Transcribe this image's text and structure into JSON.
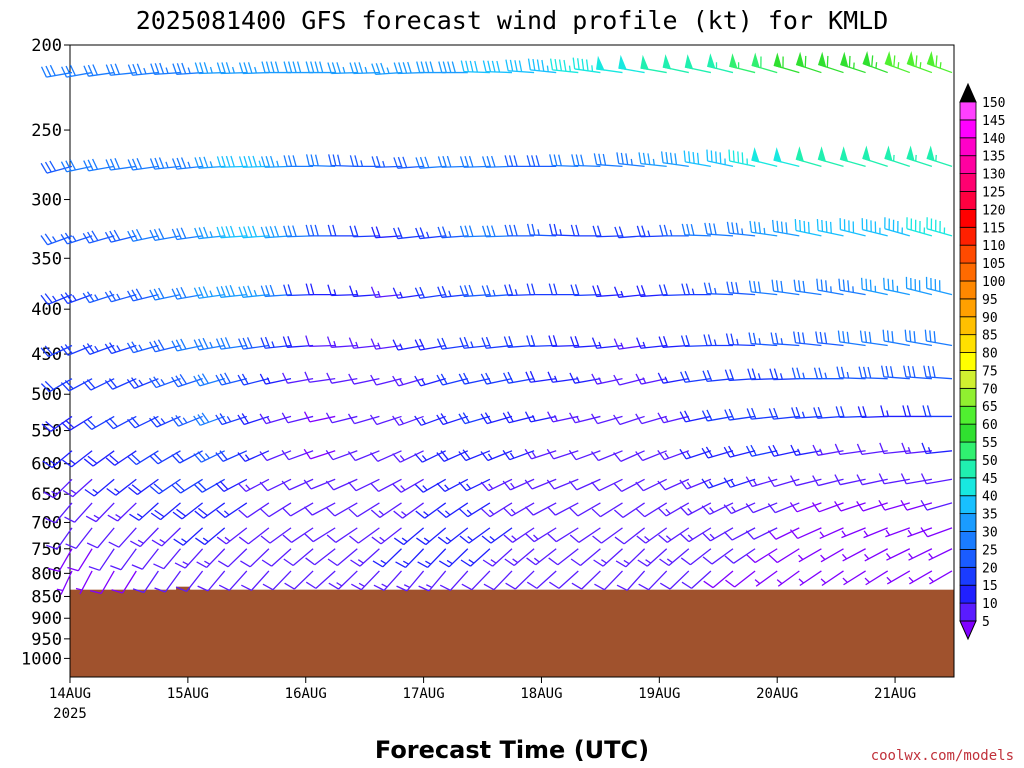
{
  "title": "2025081400 GFS forecast wind profile (kt) for KMLD",
  "credit": "coolwx.com/models",
  "chart_data": {
    "type": "wind-barb-profile",
    "title": "2025081400 GFS forecast wind profile (kt) for KMLD",
    "xlabel": "Forecast Time (UTC)",
    "ylabel": "",
    "x_ticks": [
      "14AUG",
      "15AUG",
      "16AUG",
      "17AUG",
      "18AUG",
      "19AUG",
      "20AUG",
      "21AUG"
    ],
    "x_year": "2025",
    "x_range_days": [
      0,
      7.5
    ],
    "y_ticks": [
      200,
      250,
      300,
      350,
      400,
      450,
      500,
      550,
      600,
      650,
      700,
      750,
      800,
      850,
      900,
      950,
      1000
    ],
    "ylim": [
      200,
      1050
    ],
    "y_scale": "log-pressure",
    "colorbar_levels": [
      5,
      10,
      15,
      20,
      25,
      30,
      35,
      40,
      45,
      50,
      55,
      60,
      65,
      70,
      75,
      80,
      85,
      90,
      95,
      100,
      105,
      110,
      115,
      120,
      125,
      130,
      135,
      140,
      145,
      150
    ],
    "colorbar_colors": [
      "#8000ff",
      "#5a1cff",
      "#2020ff",
      "#1a3cff",
      "#1a5cff",
      "#1a7cff",
      "#1a9cff",
      "#18c0ff",
      "#18e8e0",
      "#20f0b0",
      "#30f070",
      "#30e030",
      "#50f030",
      "#90f030",
      "#d0f030",
      "#ffff00",
      "#ffe000",
      "#ffc000",
      "#ffa000",
      "#ff8800",
      "#ff6a00",
      "#ff4a00",
      "#ff2000",
      "#ff0000",
      "#ff0040",
      "#ff0070",
      "#ff00a0",
      "#ff00c8",
      "#ff00ff",
      "#ff40ff"
    ],
    "terrain_pressure": 835,
    "terrain_color": "#a0522d",
    "levels": [
      {
        "p": 215,
        "speeds": [
          30,
          30,
          32,
          32,
          34,
          34,
          34,
          36,
          36,
          36,
          38,
          38,
          38,
          36,
          36,
          36,
          38,
          38,
          38,
          40,
          40,
          40,
          44,
          46,
          46,
          48,
          48,
          50,
          50,
          52,
          54,
          56,
          58,
          60,
          62,
          62,
          64,
          64,
          66,
          66,
          66
        ],
        "dirs": [
          260,
          260,
          262,
          264,
          264,
          266,
          266,
          268,
          268,
          268,
          270,
          270,
          270,
          268,
          268,
          266,
          268,
          270,
          270,
          272,
          272,
          274,
          276,
          276,
          278,
          278,
          280,
          280,
          282,
          282,
          284,
          284,
          286,
          286,
          288,
          288,
          288,
          290,
          290,
          290,
          290
        ]
      },
      {
        "p": 275,
        "speeds": [
          28,
          30,
          30,
          32,
          32,
          34,
          34,
          36,
          42,
          44,
          36,
          30,
          30,
          28,
          26,
          26,
          28,
          30,
          32,
          32,
          30,
          28,
          28,
          30,
          30,
          32,
          34,
          36,
          38,
          42,
          44,
          46,
          48,
          48,
          50,
          50,
          52,
          52,
          54,
          54,
          54
        ],
        "dirs": [
          255,
          258,
          260,
          262,
          262,
          264,
          264,
          266,
          268,
          268,
          268,
          270,
          272,
          272,
          270,
          268,
          266,
          266,
          268,
          268,
          268,
          270,
          270,
          272,
          272,
          274,
          276,
          276,
          278,
          280,
          282,
          282,
          284,
          284,
          286,
          286,
          286,
          288,
          288,
          288,
          288
        ]
      },
      {
        "p": 330,
        "speeds": [
          26,
          26,
          28,
          28,
          30,
          30,
          32,
          36,
          40,
          42,
          38,
          30,
          28,
          22,
          20,
          18,
          20,
          24,
          26,
          30,
          30,
          28,
          26,
          24,
          22,
          22,
          20,
          24,
          26,
          30,
          32,
          34,
          36,
          38,
          40,
          42,
          42,
          44,
          44,
          46,
          46
        ],
        "dirs": [
          250,
          252,
          254,
          256,
          258,
          260,
          262,
          264,
          266,
          266,
          266,
          268,
          270,
          270,
          268,
          266,
          264,
          264,
          266,
          268,
          268,
          270,
          272,
          272,
          270,
          268,
          266,
          268,
          270,
          272,
          274,
          276,
          278,
          280,
          282,
          282,
          284,
          284,
          286,
          286,
          286
        ]
      },
      {
        "p": 385,
        "speeds": [
          24,
          24,
          26,
          26,
          28,
          30,
          32,
          36,
          38,
          36,
          32,
          22,
          18,
          16,
          16,
          14,
          16,
          20,
          24,
          28,
          26,
          24,
          22,
          22,
          20,
          18,
          16,
          18,
          20,
          24,
          26,
          28,
          30,
          32,
          32,
          34,
          34,
          36,
          36,
          38,
          38
        ],
        "dirs": [
          248,
          250,
          252,
          254,
          256,
          258,
          260,
          262,
          264,
          264,
          266,
          268,
          270,
          268,
          266,
          264,
          262,
          262,
          264,
          266,
          266,
          268,
          270,
          270,
          268,
          266,
          264,
          266,
          268,
          270,
          272,
          274,
          276,
          278,
          278,
          280,
          280,
          282,
          282,
          284,
          284
        ]
      },
      {
        "p": 440,
        "speeds": [
          22,
          22,
          24,
          24,
          26,
          28,
          30,
          34,
          32,
          28,
          24,
          18,
          12,
          14,
          14,
          14,
          16,
          18,
          22,
          24,
          22,
          22,
          20,
          18,
          18,
          16,
          14,
          16,
          18,
          22,
          24,
          24,
          26,
          26,
          28,
          28,
          30,
          30,
          30,
          32,
          32
        ],
        "dirs": [
          245,
          248,
          250,
          252,
          254,
          256,
          258,
          260,
          262,
          262,
          264,
          266,
          268,
          266,
          264,
          262,
          260,
          260,
          262,
          264,
          264,
          266,
          268,
          268,
          266,
          264,
          262,
          264,
          266,
          268,
          270,
          272,
          274,
          274,
          276,
          276,
          278,
          278,
          280,
          280,
          280
        ]
      },
      {
        "p": 480,
        "speeds": [
          20,
          20,
          22,
          22,
          24,
          26,
          28,
          32,
          28,
          22,
          16,
          12,
          10,
          10,
          12,
          12,
          14,
          16,
          20,
          22,
          20,
          20,
          18,
          16,
          16,
          14,
          12,
          14,
          16,
          20,
          22,
          22,
          24,
          24,
          26,
          26,
          26,
          28,
          28,
          28,
          28
        ],
        "dirs": [
          240,
          242,
          244,
          246,
          248,
          250,
          252,
          254,
          256,
          256,
          258,
          260,
          262,
          260,
          258,
          256,
          254,
          254,
          256,
          258,
          258,
          260,
          262,
          262,
          260,
          258,
          256,
          258,
          260,
          262,
          264,
          266,
          268,
          268,
          270,
          270,
          272,
          272,
          274,
          274,
          274
        ]
      },
      {
        "p": 530,
        "speeds": [
          18,
          18,
          20,
          20,
          22,
          24,
          26,
          30,
          24,
          18,
          14,
          10,
          8,
          10,
          10,
          12,
          14,
          16,
          18,
          20,
          18,
          18,
          16,
          14,
          14,
          12,
          10,
          12,
          14,
          18,
          20,
          20,
          22,
          22,
          24,
          22,
          20,
          18,
          16,
          18,
          20
        ],
        "dirs": [
          235,
          238,
          240,
          242,
          244,
          246,
          248,
          250,
          252,
          252,
          254,
          256,
          258,
          256,
          254,
          252,
          250,
          250,
          252,
          254,
          254,
          256,
          258,
          258,
          256,
          254,
          252,
          254,
          256,
          258,
          260,
          262,
          264,
          264,
          266,
          266,
          268,
          268,
          270,
          270,
          270
        ]
      },
      {
        "p": 580,
        "speeds": [
          16,
          16,
          18,
          18,
          20,
          22,
          22,
          26,
          20,
          16,
          12,
          10,
          8,
          10,
          10,
          12,
          14,
          16,
          18,
          18,
          16,
          16,
          14,
          12,
          12,
          10,
          10,
          12,
          14,
          16,
          18,
          18,
          20,
          18,
          16,
          14,
          12,
          12,
          12,
          14,
          16
        ],
        "dirs": [
          230,
          232,
          234,
          236,
          238,
          240,
          242,
          244,
          246,
          246,
          248,
          250,
          252,
          250,
          248,
          246,
          244,
          244,
          246,
          248,
          248,
          250,
          252,
          252,
          250,
          248,
          246,
          248,
          250,
          252,
          254,
          256,
          258,
          258,
          260,
          260,
          262,
          262,
          264,
          264,
          264
        ]
      },
      {
        "p": 625,
        "speeds": [
          14,
          14,
          16,
          16,
          18,
          20,
          20,
          22,
          18,
          14,
          12,
          10,
          10,
          10,
          10,
          12,
          14,
          16,
          16,
          16,
          14,
          14,
          12,
          12,
          12,
          12,
          10,
          10,
          12,
          14,
          16,
          16,
          14,
          12,
          10,
          10,
          10,
          10,
          10,
          10,
          12
        ],
        "dirs": [
          225,
          228,
          230,
          232,
          234,
          236,
          238,
          240,
          242,
          242,
          244,
          246,
          248,
          246,
          244,
          242,
          240,
          240,
          242,
          244,
          244,
          246,
          248,
          248,
          246,
          244,
          242,
          244,
          246,
          248,
          250,
          252,
          254,
          254,
          256,
          256,
          258,
          258,
          260,
          260,
          260
        ]
      },
      {
        "p": 665,
        "speeds": [
          12,
          12,
          14,
          14,
          16,
          18,
          18,
          18,
          16,
          12,
          10,
          10,
          10,
          12,
          12,
          14,
          14,
          16,
          16,
          16,
          14,
          14,
          12,
          12,
          12,
          12,
          12,
          12,
          14,
          14,
          14,
          14,
          12,
          10,
          8,
          8,
          8,
          8,
          8,
          8,
          10
        ],
        "dirs": [
          220,
          222,
          224,
          226,
          228,
          230,
          232,
          234,
          236,
          236,
          238,
          240,
          242,
          240,
          238,
          236,
          234,
          234,
          236,
          238,
          238,
          240,
          242,
          242,
          240,
          238,
          236,
          238,
          240,
          242,
          244,
          246,
          248,
          248,
          250,
          250,
          252,
          252,
          254,
          254,
          254
        ]
      },
      {
        "p": 710,
        "speeds": [
          10,
          10,
          12,
          12,
          14,
          14,
          16,
          16,
          14,
          12,
          10,
          10,
          10,
          12,
          12,
          14,
          16,
          16,
          16,
          16,
          16,
          14,
          14,
          12,
          12,
          12,
          12,
          14,
          14,
          14,
          14,
          12,
          10,
          8,
          8,
          6,
          6,
          6,
          6,
          6,
          8
        ],
        "dirs": [
          215,
          218,
          220,
          222,
          224,
          226,
          228,
          230,
          232,
          232,
          234,
          236,
          238,
          236,
          234,
          232,
          230,
          230,
          232,
          234,
          234,
          236,
          238,
          238,
          236,
          234,
          232,
          234,
          236,
          238,
          240,
          242,
          244,
          244,
          246,
          246,
          248,
          248,
          250,
          250,
          250
        ]
      },
      {
        "p": 750,
        "speeds": [
          8,
          8,
          10,
          10,
          12,
          12,
          14,
          14,
          12,
          10,
          10,
          10,
          12,
          12,
          14,
          16,
          16,
          16,
          16,
          16,
          14,
          14,
          14,
          12,
          12,
          14,
          14,
          14,
          14,
          12,
          12,
          10,
          8,
          8,
          6,
          6,
          6,
          6,
          6,
          6,
          6
        ],
        "dirs": [
          210,
          212,
          214,
          216,
          218,
          220,
          222,
          224,
          226,
          226,
          228,
          230,
          232,
          230,
          228,
          226,
          224,
          224,
          226,
          228,
          228,
          230,
          232,
          232,
          230,
          228,
          226,
          228,
          230,
          232,
          234,
          236,
          238,
          238,
          240,
          240,
          242,
          242,
          244,
          244,
          244
        ]
      },
      {
        "p": 795,
        "speeds": [
          6,
          6,
          8,
          8,
          10,
          10,
          10,
          10,
          10,
          10,
          10,
          12,
          12,
          14,
          14,
          14,
          14,
          14,
          12,
          12,
          12,
          12,
          12,
          12,
          12,
          12,
          12,
          12,
          10,
          10,
          8,
          8,
          6,
          6,
          6,
          6,
          6,
          6,
          6,
          6,
          6
        ],
        "dirs": [
          205,
          208,
          210,
          212,
          214,
          216,
          218,
          220,
          222,
          222,
          224,
          226,
          228,
          226,
          224,
          222,
          220,
          220,
          222,
          224,
          224,
          226,
          228,
          228,
          226,
          224,
          222,
          224,
          226,
          228,
          230,
          232,
          234,
          234,
          236,
          236,
          238,
          238,
          240,
          240,
          240
        ]
      }
    ]
  }
}
